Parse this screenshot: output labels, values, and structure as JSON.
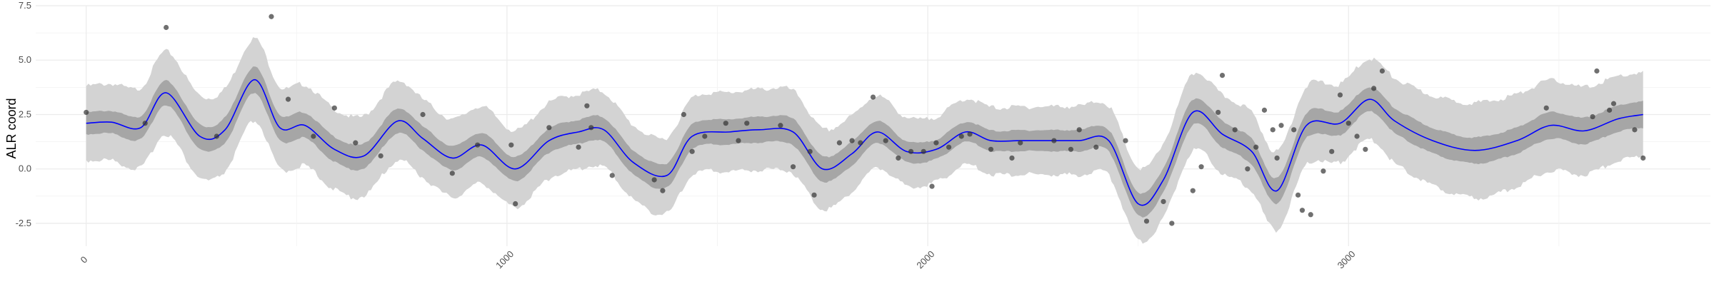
{
  "chart_data": {
    "type": "line",
    "title": "",
    "xlabel": "",
    "ylabel": "ALR coord",
    "xlim": [
      -120,
      3860
    ],
    "ylim": [
      -3.55,
      7.5
    ],
    "x_ticks": [
      0,
      1000,
      2000,
      3000
    ],
    "x_tick_labels": [
      "0",
      "1000",
      "2000",
      "3000"
    ],
    "y_ticks": [
      -2.5,
      0.0,
      2.5,
      5.0,
      7.5
    ],
    "y_tick_labels": [
      "-2.5",
      "0.0",
      "2.5",
      "5.0",
      "7.5"
    ],
    "grid": true,
    "legend": "none",
    "colors": {
      "mean_line": "#0000ff",
      "inner_band": "#a6a6a6",
      "outer_band": "#d3d3d3",
      "points": "#333333",
      "grid": "#ebebeb"
    },
    "series": [
      {
        "kind": "mean",
        "x": [
          0,
          60,
          130,
          190,
          270,
          330,
          400,
          460,
          520,
          590,
          660,
          740,
          800,
          870,
          940,
          1020,
          1100,
          1170,
          1230,
          1300,
          1380,
          1440,
          1530,
          1600,
          1680,
          1750,
          1820,
          1880,
          1950,
          2020,
          2090,
          2150,
          2220,
          2290,
          2360,
          2430,
          2500,
          2560,
          2630,
          2700,
          2770,
          2830,
          2900,
          2980,
          3050,
          3110,
          3200,
          3300,
          3400,
          3480,
          3560,
          3640,
          3700
        ],
        "y": [
          2.1,
          2.15,
          1.9,
          3.5,
          1.5,
          1.8,
          4.1,
          1.9,
          2.0,
          0.9,
          0.6,
          2.2,
          1.4,
          0.5,
          1.1,
          0.0,
          1.3,
          1.7,
          1.8,
          0.3,
          -0.3,
          1.5,
          1.7,
          1.8,
          1.7,
          0.0,
          0.7,
          1.7,
          0.8,
          0.9,
          1.7,
          1.3,
          1.3,
          1.3,
          1.3,
          1.3,
          -1.6,
          -0.5,
          2.6,
          1.6,
          0.8,
          -1.0,
          2.0,
          2.1,
          3.2,
          2.2,
          1.3,
          0.85,
          1.3,
          2.0,
          1.75,
          2.3,
          2.5
        ]
      },
      {
        "kind": "inner_band_halfwidth",
        "x": [
          0,
          190,
          400,
          800,
          1300,
          1700,
          2000,
          2450,
          2550,
          2700,
          3000,
          3300,
          3700
        ],
        "y": [
          0.5,
          0.55,
          0.6,
          0.55,
          0.55,
          0.6,
          0.45,
          0.5,
          0.55,
          0.6,
          0.55,
          0.6,
          0.6
        ]
      },
      {
        "kind": "outer_band_halfwidth",
        "x": [
          0,
          190,
          400,
          800,
          1300,
          1700,
          2000,
          2450,
          2550,
          2700,
          3000,
          3300,
          3700
        ],
        "y": [
          1.7,
          1.9,
          1.9,
          1.8,
          1.7,
          1.9,
          1.5,
          1.6,
          1.7,
          1.8,
          1.8,
          2.2,
          1.9
        ]
      },
      {
        "kind": "observations",
        "points": [
          [
            0,
            2.6
          ],
          [
            140,
            2.1
          ],
          [
            190,
            6.5
          ],
          [
            310,
            1.5
          ],
          [
            440,
            7.0
          ],
          [
            480,
            3.2
          ],
          [
            540,
            1.5
          ],
          [
            590,
            2.8
          ],
          [
            640,
            1.2
          ],
          [
            700,
            0.6
          ],
          [
            800,
            2.5
          ],
          [
            870,
            -0.2
          ],
          [
            930,
            1.1
          ],
          [
            1010,
            1.1
          ],
          [
            1020,
            -1.6
          ],
          [
            1100,
            1.9
          ],
          [
            1170,
            1.0
          ],
          [
            1190,
            2.9
          ],
          [
            1200,
            1.9
          ],
          [
            1250,
            -0.3
          ],
          [
            1350,
            -0.5
          ],
          [
            1370,
            -1.0
          ],
          [
            1420,
            2.5
          ],
          [
            1440,
            0.8
          ],
          [
            1470,
            1.5
          ],
          [
            1520,
            2.1
          ],
          [
            1550,
            1.3
          ],
          [
            1570,
            2.1
          ],
          [
            1650,
            2.0
          ],
          [
            1680,
            0.1
          ],
          [
            1720,
            0.8
          ],
          [
            1730,
            -1.2
          ],
          [
            1790,
            1.2
          ],
          [
            1820,
            1.3
          ],
          [
            1840,
            1.2
          ],
          [
            1870,
            3.3
          ],
          [
            1900,
            1.3
          ],
          [
            1930,
            0.5
          ],
          [
            1960,
            0.8
          ],
          [
            1990,
            0.8
          ],
          [
            2010,
            -0.8
          ],
          [
            2020,
            1.2
          ],
          [
            2050,
            1.0
          ],
          [
            2080,
            1.5
          ],
          [
            2100,
            1.6
          ],
          [
            2150,
            0.9
          ],
          [
            2200,
            0.5
          ],
          [
            2220,
            1.2
          ],
          [
            2300,
            1.3
          ],
          [
            2340,
            0.9
          ],
          [
            2360,
            1.8
          ],
          [
            2400,
            1.0
          ],
          [
            2470,
            1.3
          ],
          [
            2520,
            -2.4
          ],
          [
            2560,
            -1.5
          ],
          [
            2580,
            -2.5
          ],
          [
            2630,
            -1.0
          ],
          [
            2650,
            0.1
          ],
          [
            2690,
            2.6
          ],
          [
            2700,
            4.3
          ],
          [
            2730,
            1.8
          ],
          [
            2760,
            0.0
          ],
          [
            2780,
            1.0
          ],
          [
            2800,
            2.7
          ],
          [
            2820,
            1.8
          ],
          [
            2830,
            0.5
          ],
          [
            2840,
            2.0
          ],
          [
            2870,
            1.8
          ],
          [
            2880,
            -1.2
          ],
          [
            2890,
            -1.9
          ],
          [
            2910,
            -2.1
          ],
          [
            2940,
            -0.1
          ],
          [
            2960,
            0.8
          ],
          [
            2980,
            3.4
          ],
          [
            3000,
            2.1
          ],
          [
            3020,
            1.5
          ],
          [
            3040,
            0.9
          ],
          [
            3060,
            3.7
          ],
          [
            3080,
            4.5
          ],
          [
            3470,
            2.8
          ],
          [
            3580,
            2.4
          ],
          [
            3590,
            4.5
          ],
          [
            3620,
            2.7
          ],
          [
            3630,
            3.0
          ],
          [
            3680,
            1.8
          ],
          [
            3700,
            0.5
          ]
        ]
      }
    ]
  }
}
